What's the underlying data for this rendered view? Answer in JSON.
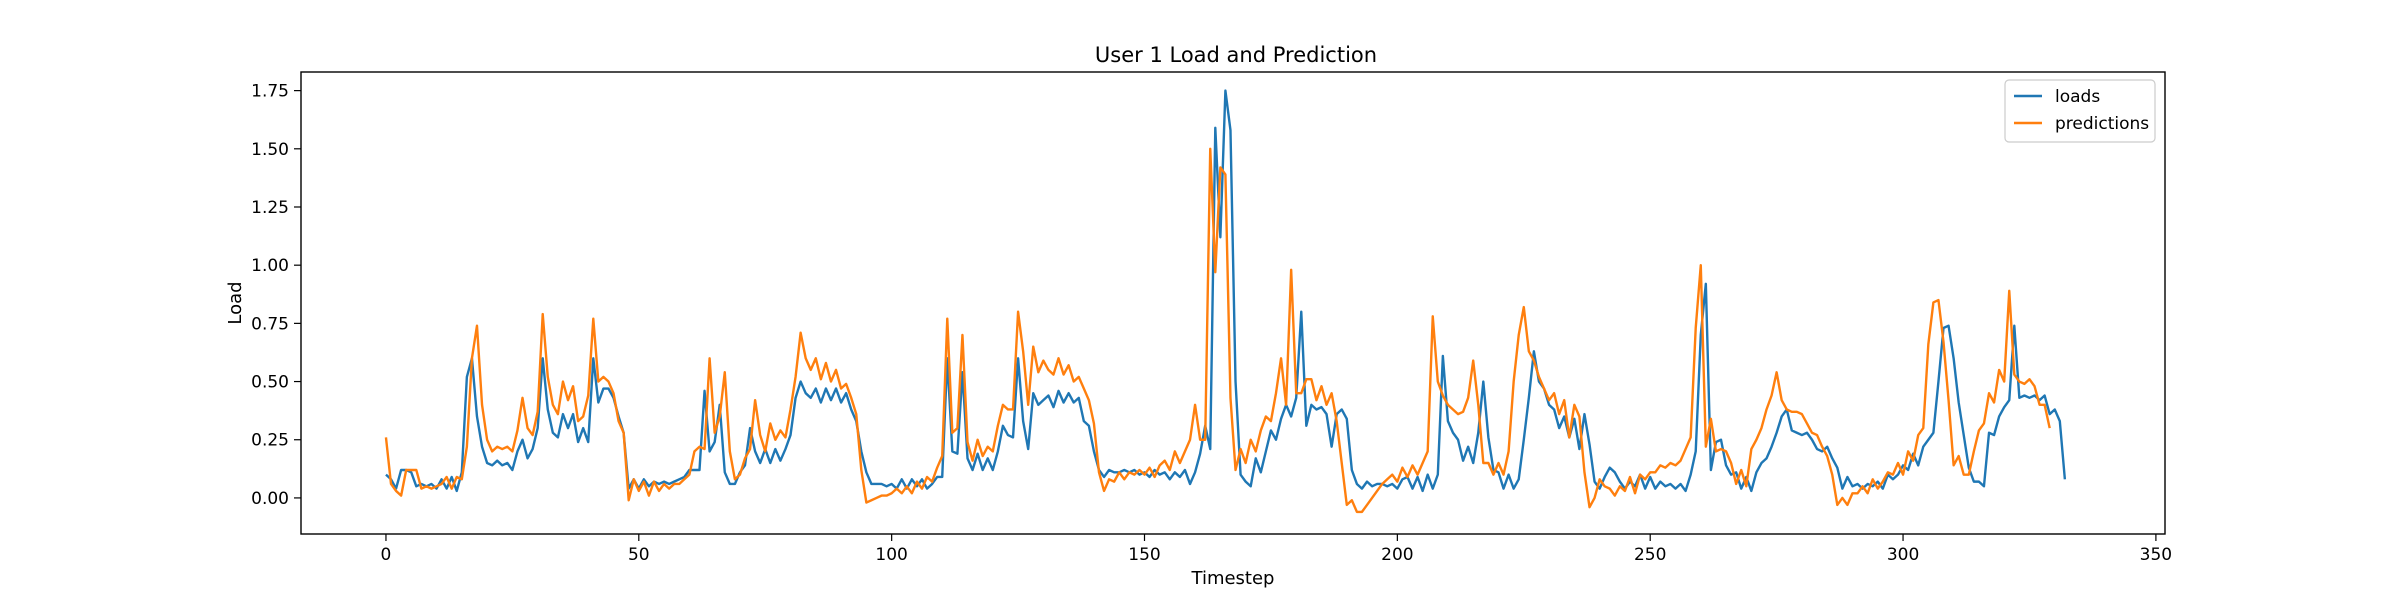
{
  "chart_data": {
    "type": "line",
    "title": "User 1 Load and Prediction",
    "xlabel": "Timestep",
    "ylabel": "Load",
    "xlim": [
      -16.8,
      351.8
    ],
    "ylim": [
      -0.155,
      1.83
    ],
    "x_ticks": [
      0,
      50,
      100,
      150,
      200,
      250,
      300,
      350
    ],
    "y_ticks": [
      0.0,
      0.25,
      0.5,
      0.75,
      1.0,
      1.25,
      1.5,
      1.75
    ],
    "y_tick_labels": [
      "0.00",
      "0.25",
      "0.50",
      "0.75",
      "1.00",
      "1.25",
      "1.50",
      "1.75"
    ],
    "grid": false,
    "legend_position": "top-right",
    "x_start": 0,
    "series": [
      {
        "name": "loads",
        "color": "#1f77b4",
        "values": [
          0.1,
          0.08,
          0.04,
          0.12,
          0.12,
          0.11,
          0.05,
          0.06,
          0.05,
          0.06,
          0.04,
          0.08,
          0.04,
          0.09,
          0.03,
          0.11,
          0.52,
          0.6,
          0.35,
          0.22,
          0.15,
          0.14,
          0.16,
          0.14,
          0.15,
          0.12,
          0.2,
          0.25,
          0.17,
          0.21,
          0.3,
          0.6,
          0.38,
          0.28,
          0.26,
          0.36,
          0.3,
          0.36,
          0.24,
          0.3,
          0.24,
          0.6,
          0.41,
          0.47,
          0.47,
          0.43,
          0.35,
          0.28,
          0.04,
          0.08,
          0.04,
          0.08,
          0.05,
          0.07,
          0.06,
          0.07,
          0.06,
          0.07,
          0.08,
          0.09,
          0.12,
          0.12,
          0.12,
          0.46,
          0.2,
          0.24,
          0.4,
          0.11,
          0.06,
          0.06,
          0.11,
          0.14,
          0.3,
          0.2,
          0.15,
          0.21,
          0.15,
          0.21,
          0.16,
          0.21,
          0.27,
          0.43,
          0.5,
          0.45,
          0.43,
          0.47,
          0.41,
          0.47,
          0.42,
          0.47,
          0.41,
          0.45,
          0.38,
          0.33,
          0.2,
          0.11,
          0.06,
          0.06,
          0.06,
          0.05,
          0.06,
          0.04,
          0.08,
          0.04,
          0.08,
          0.05,
          0.08,
          0.04,
          0.06,
          0.09,
          0.09,
          0.6,
          0.2,
          0.19,
          0.54,
          0.17,
          0.12,
          0.19,
          0.12,
          0.17,
          0.12,
          0.2,
          0.31,
          0.27,
          0.26,
          0.6,
          0.33,
          0.21,
          0.45,
          0.4,
          0.42,
          0.44,
          0.39,
          0.46,
          0.41,
          0.45,
          0.41,
          0.43,
          0.33,
          0.31,
          0.2,
          0.12,
          0.09,
          0.12,
          0.11,
          0.11,
          0.12,
          0.11,
          0.12,
          0.1,
          0.11,
          0.09,
          0.12,
          0.1,
          0.11,
          0.08,
          0.11,
          0.09,
          0.12,
          0.06,
          0.11,
          0.19,
          0.31,
          0.21,
          1.59,
          1.12,
          1.75,
          1.58,
          0.5,
          0.1,
          0.07,
          0.05,
          0.17,
          0.11,
          0.2,
          0.29,
          0.25,
          0.34,
          0.4,
          0.35,
          0.43,
          0.8,
          0.31,
          0.4,
          0.38,
          0.39,
          0.36,
          0.22,
          0.36,
          0.38,
          0.34,
          0.12,
          0.06,
          0.04,
          0.07,
          0.05,
          0.06,
          0.06,
          0.05,
          0.06,
          0.04,
          0.08,
          0.09,
          0.04,
          0.09,
          0.03,
          0.1,
          0.04,
          0.1,
          0.61,
          0.33,
          0.28,
          0.25,
          0.16,
          0.22,
          0.15,
          0.28,
          0.5,
          0.26,
          0.12,
          0.11,
          0.04,
          0.1,
          0.04,
          0.08,
          0.25,
          0.43,
          0.63,
          0.5,
          0.47,
          0.4,
          0.38,
          0.3,
          0.35,
          0.26,
          0.34,
          0.21,
          0.36,
          0.23,
          0.07,
          0.04,
          0.09,
          0.13,
          0.11,
          0.07,
          0.04,
          0.07,
          0.05,
          0.1,
          0.04,
          0.09,
          0.04,
          0.07,
          0.05,
          0.06,
          0.04,
          0.06,
          0.03,
          0.1,
          0.2,
          0.7,
          0.92,
          0.12,
          0.24,
          0.25,
          0.14,
          0.1,
          0.11,
          0.04,
          0.09,
          0.03,
          0.11,
          0.15,
          0.17,
          0.22,
          0.28,
          0.35,
          0.38,
          0.29,
          0.28,
          0.27,
          0.28,
          0.25,
          0.21,
          0.2,
          0.22,
          0.17,
          0.13,
          0.04,
          0.09,
          0.05,
          0.06,
          0.04,
          0.06,
          0.05,
          0.07,
          0.04,
          0.1,
          0.08,
          0.1,
          0.14,
          0.12,
          0.19,
          0.14,
          0.22,
          0.25,
          0.28,
          0.5,
          0.73,
          0.74,
          0.6,
          0.41,
          0.27,
          0.13,
          0.07,
          0.07,
          0.05,
          0.28,
          0.27,
          0.35,
          0.39,
          0.42,
          0.74,
          0.43,
          0.44,
          0.43,
          0.44,
          0.42,
          0.44,
          0.36,
          0.38,
          0.33,
          0.08
        ]
      },
      {
        "name": "predictions",
        "color": "#ff7f0e",
        "values": [
          0.26,
          0.06,
          0.03,
          0.01,
          0.12,
          0.12,
          0.12,
          0.04,
          0.05,
          0.04,
          0.05,
          0.06,
          0.09,
          0.04,
          0.09,
          0.08,
          0.22,
          0.6,
          0.74,
          0.4,
          0.25,
          0.2,
          0.22,
          0.21,
          0.22,
          0.2,
          0.29,
          0.43,
          0.3,
          0.27,
          0.37,
          0.79,
          0.52,
          0.4,
          0.36,
          0.5,
          0.42,
          0.48,
          0.33,
          0.35,
          0.44,
          0.77,
          0.5,
          0.52,
          0.5,
          0.45,
          0.33,
          0.28,
          -0.01,
          0.08,
          0.03,
          0.07,
          0.01,
          0.07,
          0.03,
          0.06,
          0.04,
          0.06,
          0.06,
          0.08,
          0.1,
          0.2,
          0.22,
          0.21,
          0.6,
          0.28,
          0.35,
          0.54,
          0.2,
          0.08,
          0.1,
          0.17,
          0.21,
          0.42,
          0.27,
          0.2,
          0.32,
          0.25,
          0.29,
          0.26,
          0.38,
          0.52,
          0.71,
          0.6,
          0.55,
          0.6,
          0.51,
          0.58,
          0.5,
          0.55,
          0.47,
          0.49,
          0.43,
          0.36,
          0.12,
          -0.02,
          -0.01,
          0.0,
          0.01,
          0.01,
          0.02,
          0.04,
          0.02,
          0.05,
          0.02,
          0.07,
          0.04,
          0.09,
          0.07,
          0.13,
          0.18,
          0.77,
          0.28,
          0.3,
          0.7,
          0.24,
          0.16,
          0.25,
          0.18,
          0.22,
          0.2,
          0.31,
          0.4,
          0.38,
          0.38,
          0.8,
          0.63,
          0.4,
          0.65,
          0.54,
          0.59,
          0.55,
          0.53,
          0.6,
          0.53,
          0.57,
          0.5,
          0.52,
          0.47,
          0.42,
          0.32,
          0.11,
          0.03,
          0.08,
          0.07,
          0.11,
          0.08,
          0.11,
          0.1,
          0.12,
          0.1,
          0.13,
          0.09,
          0.14,
          0.16,
          0.12,
          0.2,
          0.15,
          0.2,
          0.25,
          0.4,
          0.25,
          0.25,
          1.5,
          0.97,
          1.42,
          1.39,
          0.43,
          0.12,
          0.21,
          0.15,
          0.25,
          0.2,
          0.29,
          0.35,
          0.33,
          0.45,
          0.6,
          0.4,
          0.98,
          0.45,
          0.45,
          0.51,
          0.51,
          0.42,
          0.48,
          0.4,
          0.45,
          0.33,
          0.15,
          -0.03,
          -0.01,
          -0.06,
          -0.06,
          -0.03,
          0.0,
          0.03,
          0.06,
          0.08,
          0.1,
          0.07,
          0.13,
          0.09,
          0.14,
          0.1,
          0.15,
          0.2,
          0.78,
          0.5,
          0.44,
          0.4,
          0.38,
          0.36,
          0.37,
          0.43,
          0.59,
          0.4,
          0.15,
          0.15,
          0.1,
          0.15,
          0.1,
          0.2,
          0.5,
          0.7,
          0.82,
          0.63,
          0.59,
          0.52,
          0.47,
          0.42,
          0.45,
          0.36,
          0.42,
          0.26,
          0.4,
          0.35,
          0.11,
          -0.04,
          0.0,
          0.08,
          0.05,
          0.04,
          0.01,
          0.05,
          0.03,
          0.09,
          0.02,
          0.1,
          0.08,
          0.11,
          0.11,
          0.14,
          0.13,
          0.15,
          0.14,
          0.16,
          0.21,
          0.26,
          0.73,
          1.0,
          0.22,
          0.34,
          0.2,
          0.21,
          0.2,
          0.15,
          0.06,
          0.12,
          0.05,
          0.21,
          0.25,
          0.3,
          0.38,
          0.44,
          0.54,
          0.42,
          0.38,
          0.37,
          0.37,
          0.36,
          0.32,
          0.28,
          0.27,
          0.22,
          0.18,
          0.1,
          -0.03,
          0.0,
          -0.03,
          0.02,
          0.02,
          0.05,
          0.02,
          0.08,
          0.04,
          0.07,
          0.11,
          0.1,
          0.15,
          0.1,
          0.2,
          0.16,
          0.27,
          0.3,
          0.66,
          0.84,
          0.85,
          0.67,
          0.42,
          0.14,
          0.18,
          0.1,
          0.1,
          0.2,
          0.29,
          0.32,
          0.45,
          0.41,
          0.55,
          0.5,
          0.89,
          0.53,
          0.5,
          0.49,
          0.51,
          0.48,
          0.4,
          0.4,
          0.3
        ]
      }
    ]
  }
}
